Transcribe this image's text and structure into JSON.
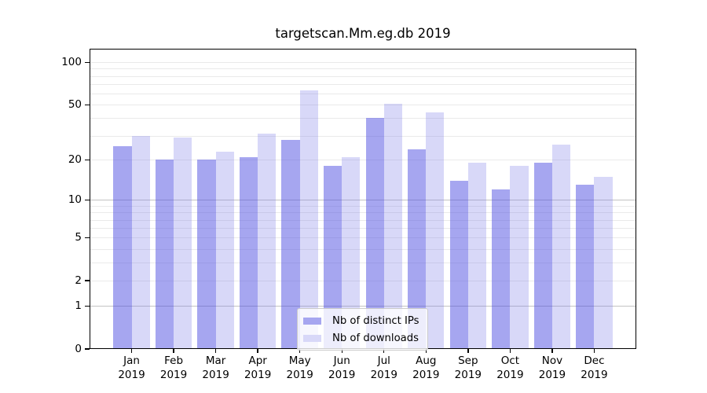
{
  "title": "targetscan.Mm.eg.db 2019",
  "chart_data": {
    "type": "bar",
    "title": "targetscan.Mm.eg.db 2019",
    "xlabel": "",
    "ylabel": "",
    "y_scale": "log10(value+1)",
    "ylim": [
      0,
      125
    ],
    "yticks": [
      0,
      1,
      2,
      5,
      10,
      20,
      50,
      100
    ],
    "gridlines": {
      "minor": [
        2,
        3,
        4,
        5,
        6,
        7,
        8,
        9,
        20,
        30,
        40,
        50,
        60,
        70,
        80,
        90,
        100
      ],
      "major": [
        1,
        10
      ]
    },
    "categories": [
      "Jan",
      "Feb",
      "Mar",
      "Apr",
      "May",
      "Jun",
      "Jul",
      "Aug",
      "Sep",
      "Oct",
      "Nov",
      "Dec"
    ],
    "year_label": "2019",
    "series": [
      {
        "name": "Nb of distinct IPs",
        "color": "#a6a6f0",
        "fill": "rgba(77,77,225,0.5)",
        "values": [
          25,
          20,
          20,
          21,
          28,
          18,
          40,
          24,
          14,
          12,
          19,
          13
        ]
      },
      {
        "name": "Nb of downloads",
        "color": "#d8d8f8",
        "fill": "rgba(125,125,232,0.3)",
        "values": [
          30,
          29,
          23,
          31,
          63,
          21,
          51,
          44,
          19,
          18,
          26,
          15
        ]
      }
    ],
    "legend_position": "lower center",
    "grid": true
  }
}
